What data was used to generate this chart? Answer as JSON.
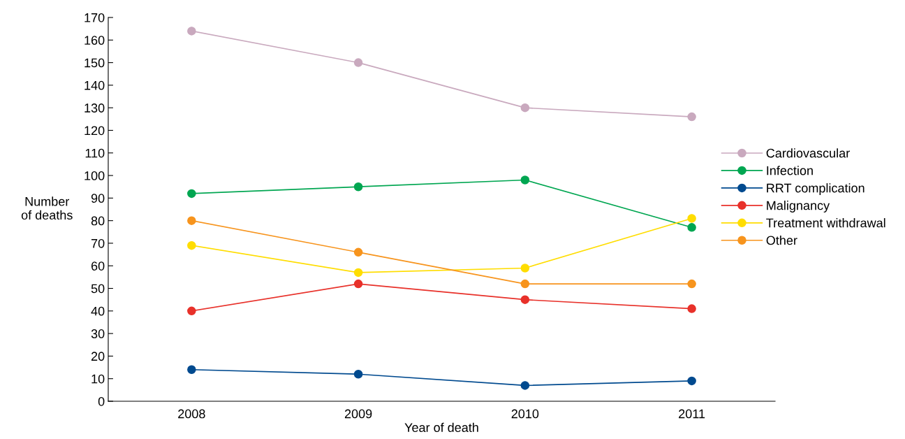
{
  "chart_data": {
    "type": "line",
    "xlabel": "Year of death",
    "ylabel": "Number\nof deaths",
    "categories": [
      "2008",
      "2009",
      "2010",
      "2011"
    ],
    "series": [
      {
        "name": "Cardiovascular",
        "color": "#c9a9be",
        "values": [
          164,
          150,
          130,
          126
        ]
      },
      {
        "name": "Infection",
        "color": "#00a651",
        "values": [
          92,
          95,
          98,
          77
        ]
      },
      {
        "name": "RRT complication",
        "color": "#004a8f",
        "values": [
          14,
          12,
          7,
          9
        ]
      },
      {
        "name": "Malignancy",
        "color": "#e8312a",
        "values": [
          40,
          52,
          45,
          41
        ]
      },
      {
        "name": "Treatment withdrawal",
        "color": "#ffdd00",
        "values": [
          69,
          57,
          59,
          81
        ]
      },
      {
        "name": "Other",
        "color": "#f7941d",
        "values": [
          80,
          66,
          52,
          52
        ]
      }
    ],
    "ylim": [
      0,
      170
    ],
    "yticks": [
      0,
      10,
      20,
      30,
      40,
      50,
      60,
      70,
      80,
      90,
      100,
      110,
      120,
      130,
      140,
      150,
      160,
      170
    ],
    "grid": false,
    "legend": "right",
    "marker": "circle",
    "line_style": "solid"
  }
}
